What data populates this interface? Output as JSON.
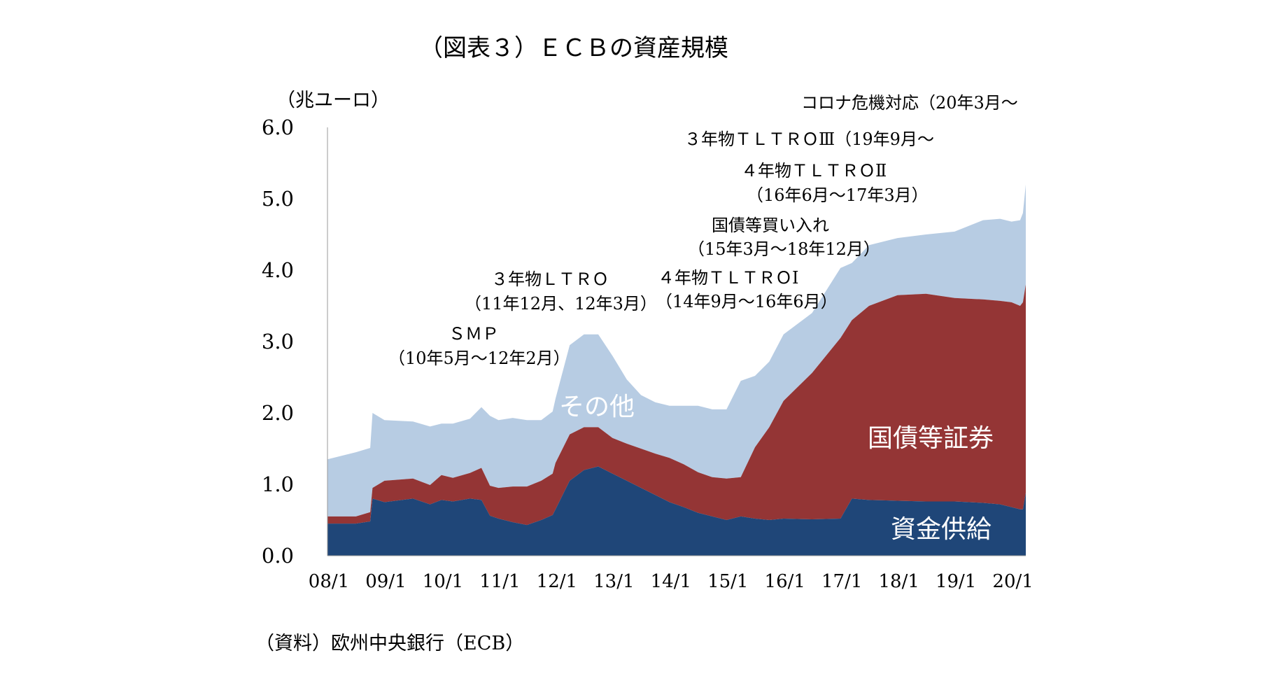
{
  "title": "（図表３）ＥＣＢの資産規模",
  "source": "（資料）欧州中央銀行（ECB）",
  "colors": {
    "other": "#b7cce3",
    "bonds": "#943535",
    "funding": "#1f4678",
    "axis": "#999999",
    "area_text": "#ffffff"
  },
  "chart_data": {
    "type": "area",
    "stacked": true,
    "ylabel": "（兆ユーロ）",
    "ylim": [
      0,
      6
    ],
    "yticks": [
      0,
      1,
      2,
      3,
      4,
      5,
      6
    ],
    "ytick_labels": [
      "0.0",
      "1.0",
      "2.0",
      "3.0",
      "4.0",
      "5.0",
      "6.0"
    ],
    "xlim": [
      2008.0,
      2020.25
    ],
    "xticks": [
      2008,
      2009,
      2010,
      2011,
      2012,
      2013,
      2014,
      2015,
      2016,
      2017,
      2018,
      2019,
      2020
    ],
    "xtick_labels": [
      "08/1",
      "09/1",
      "10/1",
      "11/1",
      "12/1",
      "13/1",
      "14/1",
      "15/1",
      "16/1",
      "17/1",
      "18/1",
      "19/1",
      "20/1"
    ],
    "grid": false,
    "legend": "none (labels placed on areas)",
    "x": [
      2008.0,
      2008.5,
      2008.75,
      2008.79,
      2009.0,
      2009.5,
      2009.8,
      2010.0,
      2010.2,
      2010.5,
      2010.7,
      2010.85,
      2011.0,
      2011.25,
      2011.5,
      2011.75,
      2011.95,
      2012.0,
      2012.25,
      2012.5,
      2012.75,
      2013.0,
      2013.25,
      2013.5,
      2013.75,
      2014.0,
      2014.25,
      2014.5,
      2014.75,
      2015.0,
      2015.25,
      2015.5,
      2015.75,
      2016.0,
      2016.5,
      2017.0,
      2017.2,
      2017.5,
      2018.0,
      2018.5,
      2019.0,
      2019.5,
      2019.8,
      2020.0,
      2020.15,
      2020.2,
      2020.25
    ],
    "series": [
      {
        "name": "資金供給",
        "values": [
          0.45,
          0.45,
          0.48,
          0.8,
          0.75,
          0.8,
          0.72,
          0.78,
          0.76,
          0.8,
          0.78,
          0.56,
          0.52,
          0.47,
          0.43,
          0.5,
          0.57,
          0.65,
          1.05,
          1.2,
          1.25,
          1.15,
          1.05,
          0.95,
          0.85,
          0.75,
          0.68,
          0.6,
          0.55,
          0.5,
          0.55,
          0.52,
          0.5,
          0.52,
          0.51,
          0.52,
          0.8,
          0.78,
          0.77,
          0.76,
          0.76,
          0.74,
          0.72,
          0.68,
          0.65,
          0.65,
          0.88
        ]
      },
      {
        "name": "国債等証券",
        "values": [
          0.1,
          0.1,
          0.13,
          0.15,
          0.3,
          0.28,
          0.27,
          0.35,
          0.33,
          0.36,
          0.45,
          0.42,
          0.43,
          0.5,
          0.54,
          0.55,
          0.58,
          0.65,
          0.65,
          0.6,
          0.55,
          0.5,
          0.52,
          0.55,
          0.58,
          0.62,
          0.6,
          0.57,
          0.55,
          0.58,
          0.55,
          1.0,
          1.3,
          1.65,
          2.05,
          2.53,
          2.5,
          2.72,
          2.88,
          2.91,
          2.85,
          2.85,
          2.85,
          2.87,
          2.85,
          2.9,
          2.92
        ]
      },
      {
        "name": "その他",
        "values": [
          0.8,
          0.9,
          0.9,
          1.05,
          0.85,
          0.8,
          0.82,
          0.72,
          0.76,
          0.76,
          0.85,
          0.98,
          0.95,
          0.96,
          0.93,
          0.85,
          0.87,
          0.9,
          1.25,
          1.3,
          1.3,
          1.15,
          0.9,
          0.75,
          0.72,
          0.73,
          0.82,
          0.93,
          0.95,
          0.97,
          1.35,
          1.0,
          0.92,
          0.93,
          0.84,
          0.98,
          0.8,
          0.85,
          0.8,
          0.83,
          0.93,
          1.11,
          1.15,
          1.13,
          1.2,
          1.25,
          1.4
        ]
      }
    ],
    "area_labels": [
      {
        "text": "その他",
        "series": "その他"
      },
      {
        "text": "国債等証券",
        "series": "国債等証券"
      },
      {
        "text": "資金供給",
        "series": "資金供給"
      }
    ],
    "annotations": [
      "コロナ危機対応（20年3月～",
      "３年物ＴＬＴＲＯⅢ（19年9月～",
      "４年物ＴＬＴＲＯⅡ",
      "（16年6月～17年3月）",
      "国債等買い入れ",
      "（15年3月～18年12月）",
      "４年物ＴＬＴＲＯⅠ",
      "（14年9月～16年6月）",
      "３年物ＬＴＲＯ",
      "（11年12月、12年3月）",
      "ＳＭＰ",
      "（10年5月～12年2月）"
    ]
  }
}
